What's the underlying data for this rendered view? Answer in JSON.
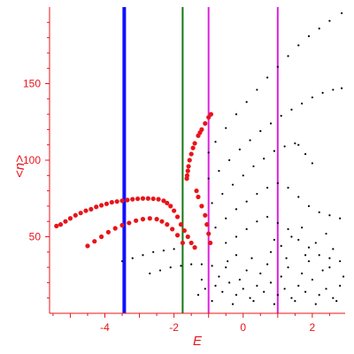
{
  "chart_data": {
    "type": "scatter",
    "title": "",
    "xlabel": "E",
    "ylabel": "<n>",
    "xlim": [
      -5.6,
      2.95
    ],
    "ylim": [
      0,
      200
    ],
    "x_ticks": [
      -4,
      -2,
      0,
      2
    ],
    "y_ticks": [
      50,
      100,
      150
    ],
    "grid": false,
    "legend": "none",
    "colors": {
      "axis": "#e8141a",
      "red_points": "#e8141a",
      "black_points": "#000000",
      "blue_line": "#1010ff",
      "green_line": "#117711",
      "magenta_line": "#dd22dd"
    },
    "vertical_lines": [
      {
        "x": -3.44,
        "color": "blue"
      },
      {
        "x": -1.75,
        "color": "green"
      },
      {
        "x": -1.0,
        "color": "magenta"
      },
      {
        "x": 1.0,
        "color": "magenta"
      }
    ],
    "series": [
      {
        "color": "red",
        "values": [
          [
            -5.4,
            57
          ],
          [
            -5.28,
            58
          ],
          [
            -5.14,
            60
          ],
          [
            -5.0,
            62
          ],
          [
            -4.85,
            64
          ],
          [
            -4.7,
            65.5
          ],
          [
            -4.55,
            67
          ],
          [
            -4.4,
            68
          ],
          [
            -4.25,
            69.5
          ],
          [
            -4.1,
            70.5
          ],
          [
            -3.95,
            71.5
          ],
          [
            -3.8,
            72.5
          ],
          [
            -3.65,
            73
          ],
          [
            -3.5,
            73.5
          ],
          [
            -3.35,
            74
          ],
          [
            -3.2,
            74.5
          ],
          [
            -3.05,
            74.8
          ],
          [
            -2.9,
            75
          ],
          [
            -2.75,
            75
          ],
          [
            -2.6,
            74.8
          ],
          [
            -2.45,
            74.5
          ],
          [
            -2.3,
            73.5
          ],
          [
            -2.2,
            72
          ],
          [
            -2.1,
            70
          ],
          [
            -2.0,
            67
          ],
          [
            -1.9,
            63
          ],
          [
            -1.8,
            58
          ],
          [
            -1.7,
            54
          ],
          [
            -1.6,
            50
          ],
          [
            -1.5,
            46
          ],
          [
            -1.4,
            43
          ],
          [
            -4.5,
            44
          ],
          [
            -4.3,
            47
          ],
          [
            -4.1,
            50
          ],
          [
            -3.9,
            53
          ],
          [
            -3.7,
            55.5
          ],
          [
            -3.5,
            57.5
          ],
          [
            -3.3,
            59
          ],
          [
            -3.1,
            60.5
          ],
          [
            -2.9,
            61.5
          ],
          [
            -2.7,
            62
          ],
          [
            -2.5,
            61.5
          ],
          [
            -2.35,
            60
          ],
          [
            -2.2,
            58
          ],
          [
            -2.05,
            55
          ],
          [
            -1.9,
            51
          ],
          [
            -1.75,
            46
          ],
          [
            -1.55,
            100
          ],
          [
            -1.58,
            96
          ],
          [
            -1.6,
            93
          ],
          [
            -1.62,
            90
          ],
          [
            -1.63,
            88
          ],
          [
            -1.5,
            104
          ],
          [
            -1.45,
            108
          ],
          [
            -1.3,
            116
          ],
          [
            -1.2,
            120
          ],
          [
            -1.1,
            124
          ],
          [
            -1.0,
            128
          ],
          [
            -0.93,
            130
          ],
          [
            -1.4,
            111
          ],
          [
            -1.25,
            118
          ],
          [
            -1.35,
            80
          ],
          [
            -1.3,
            76
          ],
          [
            -1.2,
            70
          ],
          [
            -1.1,
            64
          ],
          [
            -1.05,
            58
          ],
          [
            -1.0,
            52
          ],
          [
            -0.95,
            46
          ]
        ]
      },
      {
        "color": "black",
        "values": [
          [
            -1.0,
            105
          ],
          [
            -0.8,
            112
          ],
          [
            -0.5,
            121
          ],
          [
            -0.2,
            130
          ],
          [
            0.1,
            138
          ],
          [
            0.4,
            146
          ],
          [
            0.7,
            154
          ],
          [
            1.0,
            161
          ],
          [
            1.3,
            168
          ],
          [
            1.6,
            175
          ],
          [
            1.9,
            181
          ],
          [
            2.2,
            186
          ],
          [
            2.5,
            191
          ],
          [
            2.85,
            196
          ],
          [
            -1.0,
            88
          ],
          [
            -0.7,
            93
          ],
          [
            -0.4,
            100
          ],
          [
            -0.1,
            107
          ],
          [
            0.2,
            113
          ],
          [
            0.5,
            119
          ],
          [
            0.8,
            124
          ],
          [
            1.1,
            129
          ],
          [
            1.4,
            133
          ],
          [
            1.7,
            137
          ],
          [
            2.0,
            141
          ],
          [
            2.3,
            144
          ],
          [
            2.6,
            146
          ],
          [
            2.85,
            147
          ],
          [
            -0.9,
            72
          ],
          [
            -0.6,
            78
          ],
          [
            -0.3,
            84
          ],
          [
            0.0,
            90
          ],
          [
            0.3,
            96
          ],
          [
            0.6,
            101
          ],
          [
            0.9,
            106
          ],
          [
            1.2,
            109
          ],
          [
            1.5,
            111
          ],
          [
            1.6,
            110
          ],
          [
            1.8,
            104
          ],
          [
            2.0,
            98
          ],
          [
            -0.8,
            56
          ],
          [
            -0.5,
            62
          ],
          [
            -0.2,
            68
          ],
          [
            0.1,
            73
          ],
          [
            0.4,
            78
          ],
          [
            0.7,
            82
          ],
          [
            1.0,
            85
          ],
          [
            1.3,
            82
          ],
          [
            1.6,
            76
          ],
          [
            1.9,
            70
          ],
          [
            2.2,
            66
          ],
          [
            2.5,
            64
          ],
          [
            2.8,
            62
          ],
          [
            -0.5,
            46
          ],
          [
            -0.2,
            50
          ],
          [
            0.1,
            55
          ],
          [
            0.4,
            60
          ],
          [
            0.7,
            63
          ],
          [
            1.0,
            59
          ],
          [
            1.3,
            55
          ],
          [
            1.6,
            48
          ],
          [
            1.9,
            43
          ],
          [
            2.2,
            38
          ],
          [
            2.5,
            36
          ],
          [
            2.8,
            34
          ],
          [
            -2.7,
            26
          ],
          [
            -2.4,
            28
          ],
          [
            -2.1,
            30
          ],
          [
            -1.8,
            31
          ],
          [
            -1.5,
            32
          ],
          [
            -1.2,
            32
          ],
          [
            -0.9,
            31
          ],
          [
            -3.5,
            34
          ],
          [
            -3.2,
            36
          ],
          [
            -2.9,
            38
          ],
          [
            -2.6,
            40
          ],
          [
            -2.3,
            41
          ],
          [
            -2.0,
            42
          ],
          [
            -0.8,
            18
          ],
          [
            -0.6,
            14
          ],
          [
            -0.4,
            20
          ],
          [
            -0.2,
            12
          ],
          [
            0.0,
            16
          ],
          [
            0.2,
            10
          ],
          [
            0.4,
            18
          ],
          [
            0.6,
            14
          ],
          [
            0.8,
            20
          ],
          [
            1.0,
            12
          ],
          [
            1.2,
            16
          ],
          [
            1.4,
            10
          ],
          [
            1.6,
            18
          ],
          [
            1.8,
            14
          ],
          [
            2.0,
            22
          ],
          [
            2.2,
            12
          ],
          [
            2.4,
            16
          ],
          [
            2.6,
            10
          ],
          [
            2.8,
            18
          ],
          [
            -0.9,
            8
          ],
          [
            -0.3,
            6
          ],
          [
            0.3,
            8
          ],
          [
            0.9,
            6
          ],
          [
            1.5,
            8
          ],
          [
            2.1,
            6
          ],
          [
            2.7,
            8
          ],
          [
            -0.7,
            24
          ],
          [
            -0.1,
            22
          ],
          [
            0.5,
            26
          ],
          [
            1.1,
            24
          ],
          [
            1.7,
            26
          ],
          [
            2.3,
            28
          ],
          [
            2.9,
            24
          ],
          [
            -0.5,
            30
          ],
          [
            0.1,
            28
          ],
          [
            0.7,
            32
          ],
          [
            1.3,
            30
          ],
          [
            1.9,
            34
          ],
          [
            2.5,
            30
          ],
          [
            -0.2,
            38
          ],
          [
            0.8,
            40
          ],
          [
            1.8,
            38
          ],
          [
            2.6,
            42
          ],
          [
            1.1,
            44
          ],
          [
            1.4,
            50
          ],
          [
            2.4,
            52
          ],
          [
            0.9,
            48
          ],
          [
            2.1,
            46
          ],
          [
            1.7,
            56
          ],
          [
            -1.1,
            16
          ],
          [
            -1.3,
            12
          ],
          [
            -1.2,
            22
          ],
          [
            -0.45,
            34
          ],
          [
            0.25,
            36
          ],
          [
            1.25,
            36
          ]
        ]
      }
    ]
  }
}
